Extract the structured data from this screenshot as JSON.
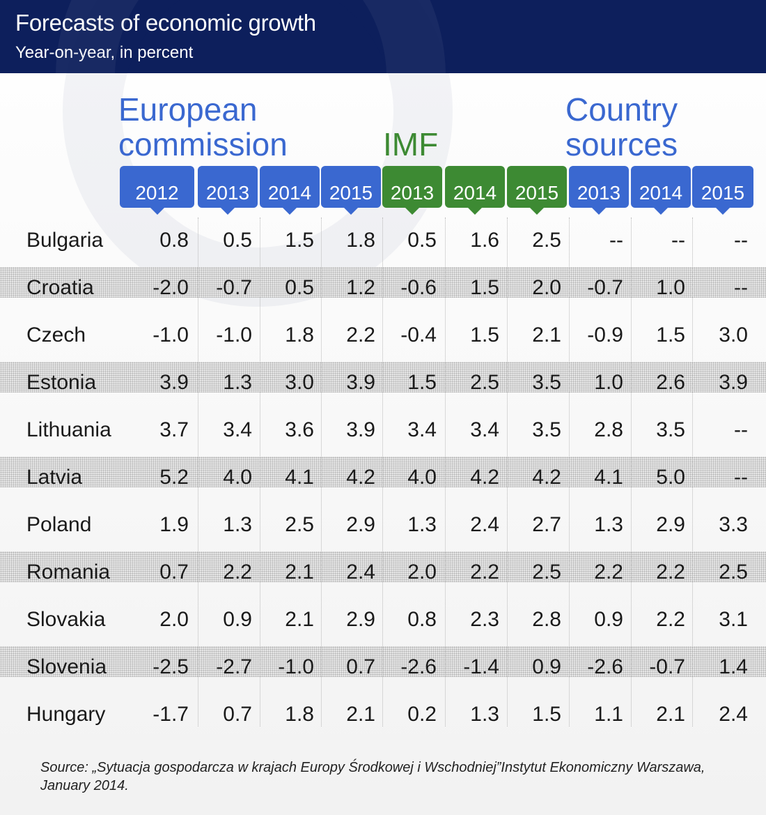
{
  "header": {
    "title": "Forecasts of economic growth",
    "subtitle": "Year-on-year, in percent"
  },
  "groups": {
    "european_commission": [
      "European",
      "commission"
    ],
    "imf": [
      "IMF"
    ],
    "country_sources": [
      "Country",
      "sources"
    ]
  },
  "colors": {
    "header": "#0d1f5c",
    "blue": "#3a68d0",
    "green": "#3d8a33"
  },
  "chart_data": {
    "type": "table",
    "title": "Forecasts of economic growth",
    "subtitle": "Year-on-year, in percent",
    "columns": [
      {
        "group": "European commission",
        "year": "2012",
        "color": "#3a68d0"
      },
      {
        "group": "European commission",
        "year": "2013",
        "color": "#3a68d0"
      },
      {
        "group": "European commission",
        "year": "2014",
        "color": "#3a68d0"
      },
      {
        "group": "European commission",
        "year": "2015",
        "color": "#3a68d0"
      },
      {
        "group": "IMF",
        "year": "2013",
        "color": "#3d8a33"
      },
      {
        "group": "IMF",
        "year": "2014",
        "color": "#3d8a33"
      },
      {
        "group": "IMF",
        "year": "2015",
        "color": "#3d8a33"
      },
      {
        "group": "Country sources",
        "year": "2013",
        "color": "#3a68d0"
      },
      {
        "group": "Country sources",
        "year": "2014",
        "color": "#3a68d0"
      },
      {
        "group": "Country sources",
        "year": "2015",
        "color": "#3a68d0"
      }
    ],
    "rows": [
      {
        "country": "Bulgaria",
        "values": [
          "0.8",
          "0.5",
          "1.5",
          "1.8",
          "0.5",
          "1.6",
          "2.5",
          "--",
          "--",
          "--"
        ]
      },
      {
        "country": "Croatia",
        "values": [
          "-2.0",
          "-0.7",
          "0.5",
          "1.2",
          "-0.6",
          "1.5",
          "2.0",
          "-0.7",
          "1.0",
          "--"
        ]
      },
      {
        "country": "Czech",
        "values": [
          "-1.0",
          "-1.0",
          "1.8",
          "2.2",
          "-0.4",
          "1.5",
          "2.1",
          "-0.9",
          "1.5",
          "3.0"
        ]
      },
      {
        "country": "Estonia",
        "values": [
          "3.9",
          "1.3",
          "3.0",
          "3.9",
          "1.5",
          "2.5",
          "3.5",
          "1.0",
          "2.6",
          "3.9"
        ]
      },
      {
        "country": "Lithuania",
        "values": [
          "3.7",
          "3.4",
          "3.6",
          "3.9",
          "3.4",
          "3.4",
          "3.5",
          "2.8",
          "3.5",
          "--"
        ]
      },
      {
        "country": "Latvia",
        "values": [
          "5.2",
          "4.0",
          "4.1",
          "4.2",
          "4.0",
          "4.2",
          "4.2",
          "4.1",
          "5.0",
          "--"
        ]
      },
      {
        "country": "Poland",
        "values": [
          "1.9",
          "1.3",
          "2.5",
          "2.9",
          "1.3",
          "2.4",
          "2.7",
          "1.3",
          "2.9",
          "3.3"
        ]
      },
      {
        "country": "Romania",
        "values": [
          "0.7",
          "2.2",
          "2.1",
          "2.4",
          "2.0",
          "2.2",
          "2.5",
          "2.2",
          "2.2",
          "2.5"
        ]
      },
      {
        "country": "Slovakia",
        "values": [
          "2.0",
          "0.9",
          "2.1",
          "2.9",
          "0.8",
          "2.3",
          "2.8",
          "0.9",
          "2.2",
          "3.1"
        ]
      },
      {
        "country": "Slovenia",
        "values": [
          "-2.5",
          "-2.7",
          "-1.0",
          "0.7",
          "-2.6",
          "-1.4",
          "0.9",
          "-2.6",
          "-0.7",
          "1.4"
        ]
      },
      {
        "country": "Hungary",
        "values": [
          "-1.7",
          "0.7",
          "1.8",
          "2.1",
          "0.2",
          "1.3",
          "1.5",
          "1.1",
          "2.1",
          "2.4"
        ]
      }
    ]
  },
  "source": "Source: „Sytuacja gospodarcza w krajach Europy Środkowej i Wschodniej”Instytut Ekonomiczny Warszawa, January 2014."
}
